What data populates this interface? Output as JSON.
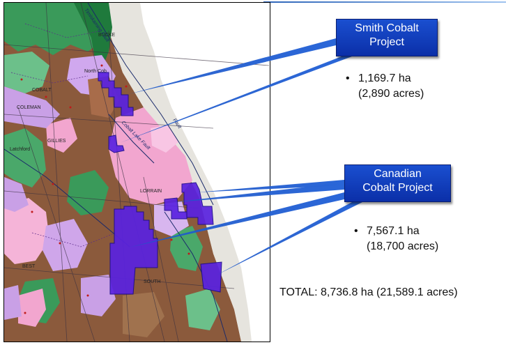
{
  "projects": {
    "smith": {
      "title_line1": "Smith Cobalt",
      "title_line2": "Project",
      "area_ha": "1,169.7 ha",
      "area_acres": "(2,890 acres)"
    },
    "canadian": {
      "title_line1": "Canadian",
      "title_line2": "Cobalt Project",
      "area_ha": "7,567.1 ha",
      "area_acres": "(18,700 acres)"
    }
  },
  "total": "TOTAL: 8,736.8 ha (21,589.1 acres)",
  "bullet": "•",
  "map": {
    "labels": {
      "cobalt": "COBALT",
      "coleman": "COLEMAN",
      "lorrain": "LORRAIN",
      "south_lorrain": "SOUTH",
      "bucke": "BUCKE",
      "gillies": "GILLIES",
      "best": "BEST",
      "latchford": "Latchford",
      "north_cobalt": "North Cob",
      "fault_upper": "Timiskaming Fault",
      "fault_lower": "Fault",
      "cobalt_lake_fault": "Cobalt Lake Fault"
    }
  },
  "colors": {
    "claim_fill": "#5a22e0",
    "claim_stroke": "#1a0a8a",
    "box_fill": "#1644c4",
    "callout": "#1a56c8"
  }
}
